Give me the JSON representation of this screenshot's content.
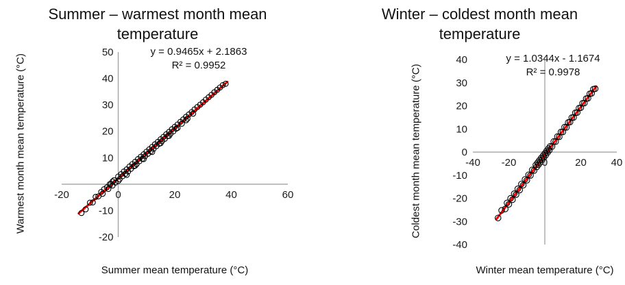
{
  "figure": {
    "background": "#ffffff"
  },
  "chart_data": [
    {
      "type": "scatter",
      "title": "Summer – warmest month mean temperature",
      "xlabel": "Summer mean temperature (°C)",
      "ylabel": "Warmest month mean temperature (°C)",
      "annotations": {
        "equation": "y = 0.9465x + 2.1863",
        "r_squared": "R² = 0.9952"
      },
      "xlim": [
        -20,
        60
      ],
      "ylim": [
        -20,
        50
      ],
      "xticks": [
        -20,
        0,
        20,
        40,
        60
      ],
      "yticks": [
        50,
        40,
        30,
        20,
        10,
        0,
        -10,
        -20
      ],
      "grid": false,
      "legend": false,
      "y_tick_position": "next-to-axis",
      "axes_cross_at": [
        0,
        0
      ],
      "colors": {
        "trendline": "#ff0000",
        "marker": "#000000",
        "axis": "#9a9a9a"
      },
      "trendline": {
        "slope": 0.9465,
        "intercept": 2.1863,
        "x_range": [
          -14,
          38.6
        ]
      },
      "points": [
        [
          -13,
          -10.9
        ],
        [
          -11.5,
          -9.5
        ],
        [
          -10,
          -7.0
        ],
        [
          -9,
          -6.9
        ],
        [
          -8,
          -4.8
        ],
        [
          -7,
          -4.6
        ],
        [
          -6,
          -2.9
        ],
        [
          -5.5,
          -3.6
        ],
        [
          -5,
          -1.9
        ],
        [
          -4,
          -1.2
        ],
        [
          -3.5,
          -1.8
        ],
        [
          -3,
          0
        ],
        [
          -2,
          -0.5
        ],
        [
          -1.5,
          1.5
        ],
        [
          -1,
          0.6
        ],
        [
          0,
          2.9
        ],
        [
          0.5,
          1.9
        ],
        [
          1,
          3.8
        ],
        [
          1.5,
          3
        ],
        [
          2,
          4.8
        ],
        [
          2.5,
          3.9
        ],
        [
          3,
          5.6
        ],
        [
          3.5,
          4.8
        ],
        [
          4,
          6.7
        ],
        [
          4.5,
          5.8
        ],
        [
          5,
          7.6
        ],
        [
          5.5,
          6.8
        ],
        [
          6,
          8.5
        ],
        [
          6.5,
          7.6
        ],
        [
          7,
          9.5
        ],
        [
          7.5,
          8.7
        ],
        [
          8,
          10.4
        ],
        [
          8.5,
          9.6
        ],
        [
          9,
          11.3
        ],
        [
          9.5,
          10.6
        ],
        [
          10,
          12.3
        ],
        [
          10.5,
          11.5
        ],
        [
          11,
          13.2
        ],
        [
          11.5,
          12.5
        ],
        [
          12,
          14.1
        ],
        [
          12.5,
          13.4
        ],
        [
          13,
          15.1
        ],
        [
          13.5,
          14.4
        ],
        [
          14,
          16
        ],
        [
          14.5,
          15.3
        ],
        [
          15,
          17
        ],
        [
          15.5,
          16.3
        ],
        [
          16,
          17.9
        ],
        [
          16.5,
          17.2
        ],
        [
          17,
          18.9
        ],
        [
          17.5,
          18.2
        ],
        [
          18,
          19.8
        ],
        [
          18.5,
          19.1
        ],
        [
          19,
          20.8
        ],
        [
          19.5,
          20
        ],
        [
          20,
          21.7
        ],
        [
          20.5,
          21
        ],
        [
          21,
          22.6
        ],
        [
          22,
          23.6
        ],
        [
          22.5,
          22.9
        ],
        [
          23,
          24.5
        ],
        [
          24,
          25.5
        ],
        [
          24.5,
          24.8
        ],
        [
          25,
          26.4
        ],
        [
          26,
          27.3
        ],
        [
          26.5,
          26.7
        ],
        [
          27,
          28.3
        ],
        [
          28,
          29.2
        ],
        [
          29,
          30.1
        ],
        [
          30,
          31
        ],
        [
          31,
          32
        ],
        [
          32,
          32.9
        ],
        [
          33,
          33.8
        ],
        [
          34,
          34.8
        ],
        [
          35,
          35.7
        ],
        [
          36,
          36.6
        ],
        [
          37,
          37.5
        ],
        [
          38,
          38
        ],
        [
          6,
          7
        ],
        [
          9,
          9.5
        ],
        [
          12,
          12.2
        ],
        [
          15,
          15.5
        ],
        [
          3,
          3.5
        ],
        [
          18,
          18.3
        ],
        [
          21,
          21.3
        ],
        [
          0,
          1.2
        ],
        [
          -2,
          1.0
        ],
        [
          24,
          24.2
        ]
      ]
    },
    {
      "type": "scatter",
      "title": "Winter – coldest month mean temperature",
      "xlabel": "Winter mean temperature (°C)",
      "ylabel": "Coldest month mean temperature (°C)",
      "annotations": {
        "equation": "y = 1.0344x - 1.1674",
        "r_squared": "R² = 0.9978"
      },
      "xlim": [
        -40,
        40
      ],
      "ylim": [
        -40,
        40
      ],
      "xticks": [
        -40,
        -20,
        0,
        20,
        40
      ],
      "yticks": [
        40,
        30,
        20,
        10,
        0,
        -10,
        -20,
        -30,
        -40
      ],
      "grid": false,
      "legend": false,
      "y_tick_position": "low",
      "axes_cross_at": [
        0,
        0
      ],
      "colors": {
        "trendline": "#ff0000",
        "marker": "#000000",
        "axis": "#9a9a9a"
      },
      "trendline": {
        "slope": 1.0344,
        "intercept": -1.1674,
        "x_range": [
          -27,
          28.6
        ]
      },
      "points": [
        [
          -26,
          -28.5
        ],
        [
          -24,
          -25.2
        ],
        [
          -22,
          -24.6
        ],
        [
          -21,
          -22
        ],
        [
          -20,
          -22.6
        ],
        [
          -19,
          -20
        ],
        [
          -18,
          -20.6
        ],
        [
          -17,
          -18
        ],
        [
          -16,
          -18.4
        ],
        [
          -15,
          -15.9
        ],
        [
          -14,
          -16.4
        ],
        [
          -13,
          -13.8
        ],
        [
          -12,
          -14.3
        ],
        [
          -11,
          -11.8
        ],
        [
          -10,
          -12.2
        ],
        [
          -9,
          -9.8
        ],
        [
          -8,
          -10.1
        ],
        [
          -7,
          -7.7
        ],
        [
          -6,
          -8
        ],
        [
          -5,
          -5.6
        ],
        [
          -4.5,
          -6.4
        ],
        [
          -4,
          -4.6
        ],
        [
          -3.5,
          -5.4
        ],
        [
          -3,
          -3.6
        ],
        [
          -2.5,
          -4.4
        ],
        [
          -2,
          -2.6
        ],
        [
          -1.5,
          -3.3
        ],
        [
          -1,
          -1.6
        ],
        [
          -0.5,
          -2.3
        ],
        [
          0,
          -0.6
        ],
        [
          0.5,
          -1.3
        ],
        [
          1,
          0.5
        ],
        [
          1.5,
          -0.2
        ],
        [
          2,
          1.5
        ],
        [
          2.5,
          0.8
        ],
        [
          3,
          2.5
        ],
        [
          4,
          2.4
        ],
        [
          5,
          4.6
        ],
        [
          6,
          4.5
        ],
        [
          7,
          6.7
        ],
        [
          8,
          6.6
        ],
        [
          9,
          8.7
        ],
        [
          10,
          8.7
        ],
        [
          11,
          10.8
        ],
        [
          12,
          10.7
        ],
        [
          13,
          12.8
        ],
        [
          14,
          13
        ],
        [
          15,
          14.9
        ],
        [
          16,
          15
        ],
        [
          17,
          17
        ],
        [
          18,
          17.1
        ],
        [
          19,
          19
        ],
        [
          20,
          19.2
        ],
        [
          21,
          21.1
        ],
        [
          22,
          21.2
        ],
        [
          23,
          23.1
        ],
        [
          24,
          23.3
        ],
        [
          25,
          25.2
        ],
        [
          26,
          25.4
        ],
        [
          27,
          27.2
        ],
        [
          28,
          27.4
        ]
      ]
    }
  ]
}
